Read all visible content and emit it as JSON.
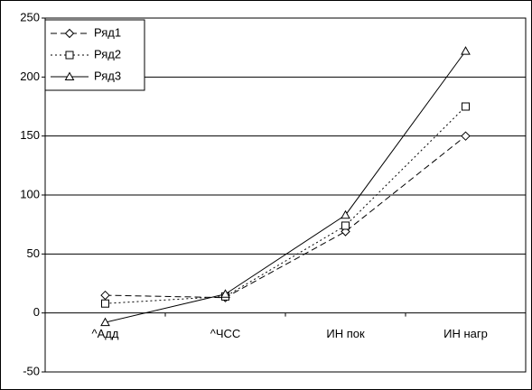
{
  "chart_data": {
    "type": "line",
    "categories": [
      "^Адд",
      "^ЧСС",
      "ИН пок",
      "ИН нагр"
    ],
    "series": [
      {
        "name": "Ряд1",
        "color": "#000000",
        "line_style": "dashed",
        "marker": "diamond",
        "values": [
          15,
          13,
          69,
          150
        ]
      },
      {
        "name": "Ряд2",
        "color": "#000000",
        "line_style": "dotted",
        "marker": "square",
        "values": [
          8,
          14,
          74,
          175
        ]
      },
      {
        "name": "Ряд3",
        "color": "#000000",
        "line_style": "solid",
        "marker": "triangle",
        "values": [
          -8,
          16,
          83,
          222
        ]
      }
    ],
    "ylim": [
      -50,
      250
    ],
    "yticks": [
      -50,
      0,
      50,
      100,
      150,
      200,
      250
    ],
    "grid": true,
    "legend": "top-left"
  }
}
